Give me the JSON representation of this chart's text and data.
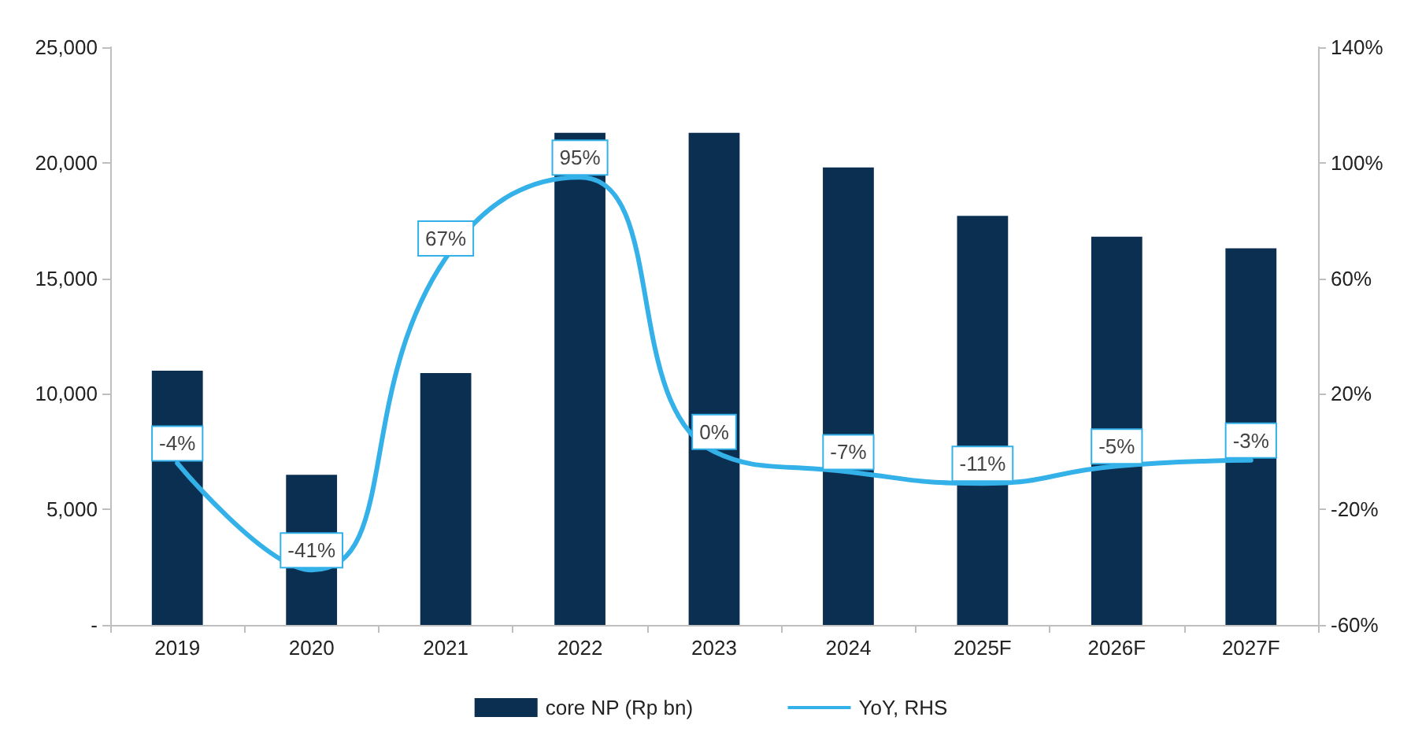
{
  "chart_data": {
    "type": "bar",
    "categories": [
      "2019",
      "2020",
      "2021",
      "2022",
      "2023",
      "2024",
      "2025F",
      "2026F",
      "2027F"
    ],
    "series": [
      {
        "name": "core NP (Rp bn)",
        "color": "#0b2f51",
        "values": [
          11000,
          6500,
          10900,
          21300,
          21300,
          19800,
          17700,
          16800,
          16300
        ]
      },
      {
        "name": "YoY, RHS",
        "type": "line",
        "axis": "y2",
        "color": "#33b1e8",
        "values": [
          -4,
          -41,
          67,
          95,
          0,
          -7,
          -11,
          -5,
          -3
        ],
        "value_labels": [
          "-4%",
          "-41%",
          "67%",
          "95%",
          "0%",
          "-7%",
          "-11%",
          "-5%",
          "-3%"
        ]
      }
    ],
    "ylim": [
      0,
      25000
    ],
    "yticks": [
      {
        "value": 0,
        "label": "-"
      },
      {
        "value": 5000,
        "label": "5,000"
      },
      {
        "value": 10000,
        "label": "10,000"
      },
      {
        "value": 15000,
        "label": "15,000"
      },
      {
        "value": 20000,
        "label": "20,000"
      },
      {
        "value": 25000,
        "label": "25,000"
      }
    ],
    "y2lim": [
      -60,
      140
    ],
    "y2ticks": [
      {
        "value": -60,
        "label": "-60%"
      },
      {
        "value": -20,
        "label": "-20%"
      },
      {
        "value": 20,
        "label": "20%"
      },
      {
        "value": 60,
        "label": "60%"
      },
      {
        "value": 100,
        "label": "100%"
      },
      {
        "value": 140,
        "label": "140%"
      }
    ],
    "legend": "bottom",
    "grid": false,
    "marker": "none"
  }
}
